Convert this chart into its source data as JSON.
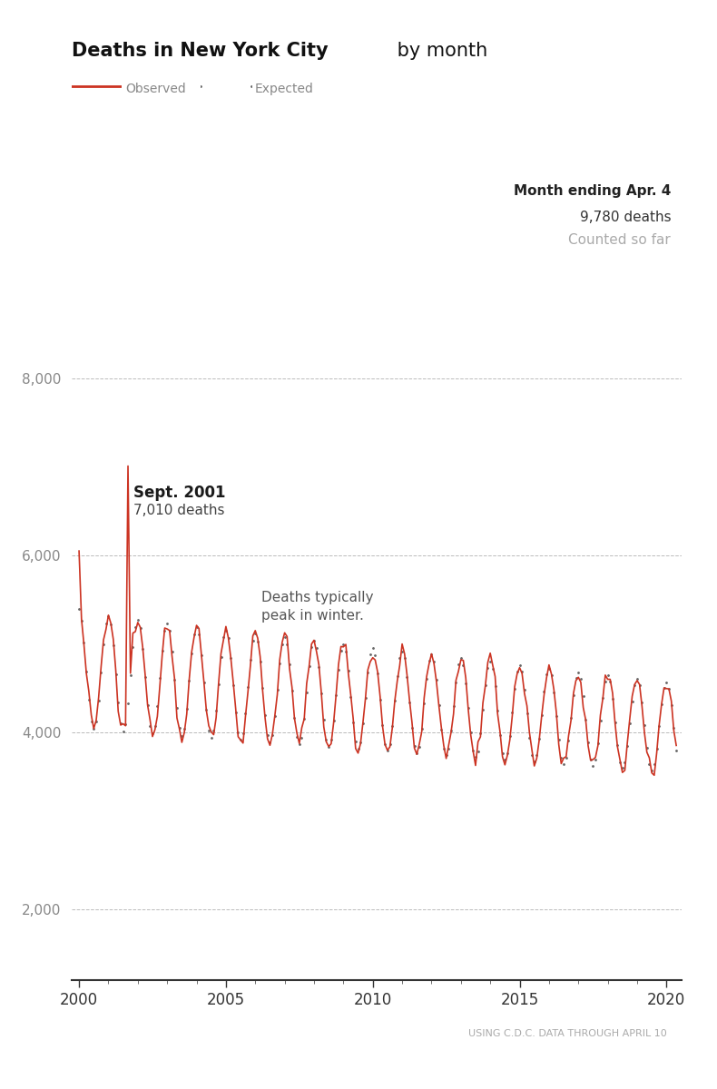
{
  "title_bold": "Deaths in New York City",
  "title_regular": " by month",
  "legend_observed": "Observed",
  "legend_expected": "Expected",
  "annotation1_bold": "Sept. 2001",
  "annotation1_sub": "7,010 deaths",
  "annotation2": "Deaths typically\npeak in winter.",
  "annotation3_bold": "Month ending Apr. 4",
  "annotation3_sub": "9,780 deaths",
  "annotation3_sub2": "Counted so far",
  "source_text": "USING C.D.C. DATA THROUGH APRIL 10",
  "observed_color": "#cc3322",
  "expected_color": "#666666",
  "background_color": "#ffffff",
  "grid_color": "#bbbbbb",
  "ylim": [
    1200,
    10800
  ],
  "yticks": [
    2000,
    4000,
    6000,
    8000
  ],
  "xlim_start": 1999.75,
  "xlim_end": 2020.5
}
